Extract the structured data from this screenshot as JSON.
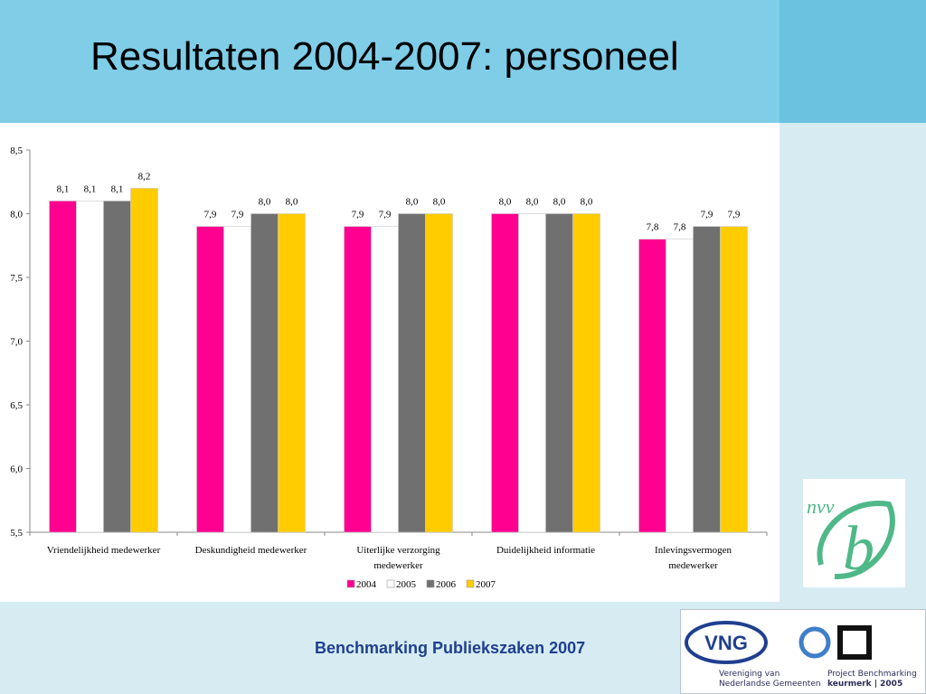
{
  "slide": {
    "title": "Resultaten 2004-2007: personeel",
    "footer": "Benchmarking Publiekszaken 2007"
  },
  "logos": {
    "nvvb_text": "nvv",
    "nvvb_mark": "b",
    "vng_text": "VNG",
    "vng_sub_line1": "Vereniging van",
    "vng_sub_line2": "Nederlandse Gemeenten",
    "pb_line1": "Project Benchmarking",
    "pb_line2": "keurmerk | 2005"
  },
  "colors": {
    "2004": "#ff0090",
    "2005": "#ffffff",
    "2006": "#707070",
    "2007": "#ffcc00"
  },
  "chart_data": {
    "type": "bar",
    "categories": [
      [
        "Vriendelijkheid medewerker"
      ],
      [
        "Deskundigheid medewerker"
      ],
      [
        "Uiterlijke verzorging",
        "medewerker"
      ],
      [
        "Duidelijkheid informatie"
      ],
      [
        "Inlevingsvermogen",
        "medewerker"
      ]
    ],
    "series": [
      {
        "name": "2004",
        "values": [
          8.1,
          7.9,
          7.9,
          8.0,
          7.8
        ],
        "labels": [
          "8,1",
          "7,9",
          "7,9",
          "8,0",
          "7,8"
        ]
      },
      {
        "name": "2005",
        "values": [
          8.1,
          7.9,
          7.9,
          8.0,
          7.8
        ],
        "labels": [
          "8,1",
          "7,9",
          "7,9",
          "8,0",
          "7,8"
        ]
      },
      {
        "name": "2006",
        "values": [
          8.1,
          8.0,
          8.0,
          8.0,
          7.9
        ],
        "labels": [
          "8,1",
          "8,0",
          "8,0",
          "8,0",
          "7,9"
        ]
      },
      {
        "name": "2007",
        "values": [
          8.2,
          8.0,
          8.0,
          8.0,
          7.9
        ],
        "labels": [
          "8,2",
          "8,0",
          "8,0",
          "8,0",
          "7,9"
        ]
      }
    ],
    "ylim": [
      5.5,
      8.5
    ],
    "yticks": [
      5.5,
      6.0,
      6.5,
      7.0,
      7.5,
      8.0,
      8.5
    ],
    "ytick_labels": [
      "5,5",
      "6,0",
      "6,5",
      "7,0",
      "7,5",
      "8,0",
      "8,5"
    ],
    "grid": false,
    "legend": "bottom"
  }
}
